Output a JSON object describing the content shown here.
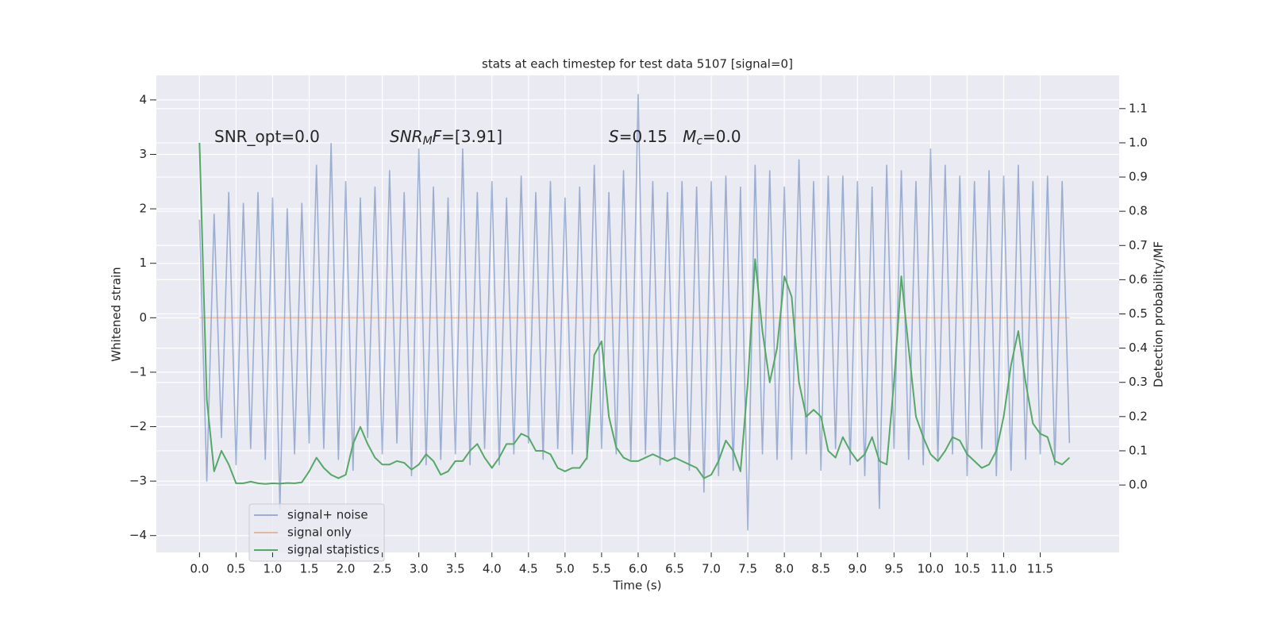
{
  "chart_data": {
    "type": "line",
    "title": "stats at each timestep for test data 5107 [signal=0]",
    "xlabel": "Time (s)",
    "ylabel": "Whitened strain",
    "y2label": "Detection probability/MF",
    "annotations": [
      [
        {
          "text": "SNR_opt=0.0"
        }
      ],
      [
        {
          "text": "SNR",
          "italic": true
        },
        {
          "text": "M",
          "italic": true,
          "sub": true
        },
        {
          "text": "F",
          "italic": true
        },
        {
          "text": "=[3.91]"
        }
      ],
      [
        {
          "text": "S",
          "italic": true
        },
        {
          "text": "=0.15   "
        },
        {
          "text": "M",
          "italic": true
        },
        {
          "text": "c",
          "italic": true,
          "sub": true
        },
        {
          "text": "=0.0"
        }
      ]
    ],
    "x": [
      0,
      0.1,
      0.2,
      0.3,
      0.4,
      0.5,
      0.6,
      0.7,
      0.8,
      0.9,
      1.0,
      1.1,
      1.2,
      1.3,
      1.4,
      1.5,
      1.6,
      1.7,
      1.8,
      1.9,
      2.0,
      2.1,
      2.2,
      2.3,
      2.4,
      2.5,
      2.6,
      2.7,
      2.8,
      2.9,
      3.0,
      3.1,
      3.2,
      3.3,
      3.4,
      3.5,
      3.6,
      3.7,
      3.8,
      3.9,
      4.0,
      4.1,
      4.2,
      4.3,
      4.4,
      4.5,
      4.6,
      4.7,
      4.8,
      4.9,
      5.0,
      5.1,
      5.2,
      5.3,
      5.4,
      5.5,
      5.6,
      5.7,
      5.8,
      5.9,
      6.0,
      6.1,
      6.2,
      6.3,
      6.4,
      6.5,
      6.6,
      6.7,
      6.8,
      6.9,
      7.0,
      7.1,
      7.2,
      7.3,
      7.4,
      7.5,
      7.6,
      7.7,
      7.8,
      7.9,
      8.0,
      8.1,
      8.2,
      8.3,
      8.4,
      8.5,
      8.6,
      8.7,
      8.8,
      8.9,
      9.0,
      9.1,
      9.2,
      9.3,
      9.4,
      9.5,
      9.6,
      9.7,
      9.8,
      9.9,
      10.0,
      10.1,
      10.2,
      10.3,
      10.4,
      10.5,
      10.6,
      10.7,
      10.8,
      10.9,
      11.0,
      11.1,
      11.2,
      11.3,
      11.4,
      11.5,
      11.6,
      11.7,
      11.8,
      11.9
    ],
    "series": [
      {
        "name": "signal+ noise",
        "color": "#4c72b0",
        "alpha": 0.5,
        "values": [
          1.8,
          -3.0,
          1.9,
          -2.2,
          2.3,
          -2.7,
          2.1,
          -2.4,
          2.3,
          -2.6,
          2.2,
          -3.5,
          2.0,
          -2.5,
          2.1,
          -2.3,
          2.8,
          -2.4,
          3.2,
          -2.6,
          2.5,
          -2.8,
          2.2,
          -2.2,
          2.4,
          -2.5,
          2.7,
          -2.3,
          2.3,
          -2.9,
          3.1,
          -2.7,
          2.4,
          -2.6,
          2.2,
          -2.5,
          3.1,
          -2.7,
          2.3,
          -2.4,
          2.5,
          -2.7,
          2.2,
          -2.5,
          2.6,
          -2.3,
          2.3,
          -2.6,
          2.5,
          -2.4,
          2.2,
          -2.5,
          2.4,
          -2.6,
          2.8,
          -2.4,
          2.3,
          -2.5,
          2.7,
          -2.6,
          4.1,
          -2.5,
          2.5,
          -2.7,
          2.3,
          -2.6,
          2.5,
          -2.8,
          2.4,
          -3.2,
          2.5,
          -2.9,
          2.6,
          -2.8,
          2.4,
          -3.9,
          2.8,
          -2.5,
          2.7,
          -2.6,
          2.4,
          -2.6,
          2.9,
          -2.5,
          2.5,
          -2.8,
          2.6,
          -2.4,
          2.6,
          -2.7,
          2.5,
          -2.9,
          2.4,
          -3.5,
          2.8,
          -2.4,
          2.7,
          -2.6,
          2.5,
          -2.7,
          3.1,
          -2.6,
          2.8,
          -2.5,
          2.6,
          -2.9,
          2.5,
          -2.4,
          2.7,
          -2.9,
          2.6,
          -2.8,
          2.8,
          -2.6,
          2.5,
          -2.5,
          2.6,
          -2.7,
          2.5,
          -2.3
        ]
      },
      {
        "name": "signal only",
        "color": "#dd8452",
        "alpha": 0.5,
        "values": [
          0,
          0,
          0,
          0,
          0,
          0,
          0,
          0,
          0,
          0,
          0,
          0,
          0,
          0,
          0,
          0,
          0,
          0,
          0,
          0,
          0,
          0,
          0,
          0,
          0,
          0,
          0,
          0,
          0,
          0,
          0,
          0,
          0,
          0,
          0,
          0,
          0,
          0,
          0,
          0,
          0,
          0,
          0,
          0,
          0,
          0,
          0,
          0,
          0,
          0,
          0,
          0,
          0,
          0,
          0,
          0,
          0,
          0,
          0,
          0,
          0,
          0,
          0,
          0,
          0,
          0,
          0,
          0,
          0,
          0,
          0,
          0,
          0,
          0,
          0,
          0,
          0,
          0,
          0,
          0,
          0,
          0,
          0,
          0,
          0,
          0,
          0,
          0,
          0,
          0,
          0,
          0,
          0,
          0,
          0,
          0,
          0,
          0,
          0,
          0,
          0,
          0,
          0,
          0,
          0,
          0,
          0,
          0,
          0,
          0,
          0,
          0,
          0,
          0,
          0,
          0,
          0,
          0,
          0,
          0
        ]
      },
      {
        "name": "signal statistics",
        "color": "#55a868",
        "alpha": 1,
        "axis": "y2",
        "values": [
          1.0,
          0.25,
          0.04,
          0.1,
          0.06,
          0.005,
          0.005,
          0.01,
          0.005,
          0.003,
          0.005,
          0.004,
          0.006,
          0.005,
          0.008,
          0.04,
          0.08,
          0.05,
          0.03,
          0.02,
          0.03,
          0.12,
          0.17,
          0.12,
          0.08,
          0.06,
          0.06,
          0.07,
          0.065,
          0.045,
          0.06,
          0.09,
          0.07,
          0.03,
          0.04,
          0.07,
          0.07,
          0.1,
          0.12,
          0.08,
          0.05,
          0.08,
          0.12,
          0.12,
          0.15,
          0.14,
          0.1,
          0.1,
          0.09,
          0.05,
          0.04,
          0.05,
          0.05,
          0.08,
          0.38,
          0.42,
          0.2,
          0.11,
          0.08,
          0.07,
          0.07,
          0.08,
          0.09,
          0.08,
          0.07,
          0.08,
          0.07,
          0.06,
          0.05,
          0.02,
          0.03,
          0.07,
          0.13,
          0.1,
          0.04,
          0.3,
          0.66,
          0.45,
          0.3,
          0.4,
          0.61,
          0.55,
          0.3,
          0.2,
          0.22,
          0.2,
          0.1,
          0.08,
          0.14,
          0.1,
          0.07,
          0.09,
          0.14,
          0.07,
          0.06,
          0.3,
          0.61,
          0.4,
          0.2,
          0.14,
          0.09,
          0.07,
          0.1,
          0.14,
          0.13,
          0.09,
          0.07,
          0.05,
          0.06,
          0.1,
          0.2,
          0.35,
          0.45,
          0.3,
          0.18,
          0.15,
          0.14,
          0.07,
          0.06,
          0.08
        ]
      }
    ],
    "xlim": [
      -0.59,
      12.58
    ],
    "xticks": [
      {
        "value": 0,
        "label": "0.0"
      },
      0.5,
      {
        "value": 1,
        "label": "1.0"
      },
      1.5,
      {
        "value": 2,
        "label": "2.0"
      },
      2.5,
      {
        "value": 3,
        "label": "3.0"
      },
      3.5,
      {
        "value": 4,
        "label": "4.0"
      },
      4.5,
      {
        "value": 5,
        "label": "5.0"
      },
      5.5,
      {
        "value": 6,
        "label": "6.0"
      },
      6.5,
      {
        "value": 7,
        "label": "7.0"
      },
      7.5,
      {
        "value": 8,
        "label": "8.0"
      },
      8.5,
      {
        "value": 9,
        "label": "9.0"
      },
      9.5,
      {
        "value": 10,
        "label": "10.0"
      },
      10.5,
      {
        "value": 11,
        "label": "11.0"
      },
      11.5
    ],
    "ylim": [
      -4.31,
      4.45
    ],
    "yticks": [
      {
        "value": -4,
        "label": "−4"
      },
      {
        "value": -3,
        "label": "−3"
      },
      {
        "value": -2,
        "label": "−2"
      },
      {
        "value": -1,
        "label": "−1"
      },
      0,
      1,
      2,
      3,
      4
    ],
    "y2lim": [
      -0.197,
      1.197
    ],
    "y2ticks": [
      {
        "value": 0,
        "label": "0.0"
      },
      0.1,
      0.2,
      0.3,
      0.4,
      0.5,
      0.6,
      0.7,
      0.8,
      0.9,
      {
        "value": 1,
        "label": "1.0"
      },
      1.1
    ],
    "grid": true,
    "legend": "lower left"
  }
}
